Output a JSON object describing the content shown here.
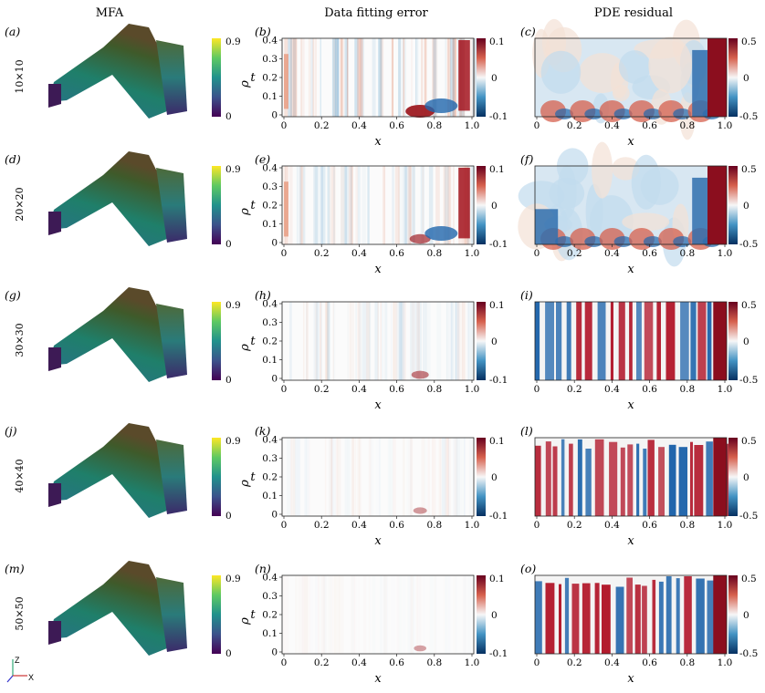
{
  "columns": {
    "col_titles": [
      "MFA",
      "Data fitting error",
      "PDE residual"
    ]
  },
  "rows": [
    {
      "label": "10×10",
      "panels": [
        "(a)",
        "(b)",
        "(c)"
      ]
    },
    {
      "label": "20×20",
      "panels": [
        "(d)",
        "(e)",
        "(f)"
      ]
    },
    {
      "label": "30×30",
      "panels": [
        "(g)",
        "(h)",
        "(i)"
      ]
    },
    {
      "label": "40×40",
      "panels": [
        "(j)",
        "(k)",
        "(l)"
      ]
    },
    {
      "label": "50×50",
      "panels": [
        "(m)",
        "(n)",
        "(o)"
      ]
    }
  ],
  "colorbars": {
    "mfa": {
      "symbol": "ρ",
      "ticks": [
        "0.9",
        "0"
      ],
      "colors": [
        "#fde725",
        "#5ec962",
        "#21918c",
        "#3b528b",
        "#440154"
      ]
    },
    "error": {
      "ticks": [
        "0.1",
        "0",
        "-0.1"
      ],
      "colors": [
        "#67001f",
        "#d6604d",
        "#f7f7f7",
        "#4393c3",
        "#053061"
      ]
    },
    "residual": {
      "ticks": [
        "0.5",
        "0",
        "-0.5"
      ],
      "colors": [
        "#67001f",
        "#d6604d",
        "#f7f7f7",
        "#4393c3",
        "#053061"
      ]
    }
  },
  "axes_labels": {
    "x": "x",
    "t": "t"
  },
  "triad": {
    "z": "Z",
    "x": "X"
  },
  "chart_data": [
    {
      "type": "heatmap",
      "title": "Data fitting error",
      "xlabel": "x",
      "ylabel": "t",
      "xlim": [
        0,
        1.0
      ],
      "ylim": [
        0,
        0.4
      ],
      "x_ticks": [
        "0",
        "0.2",
        "0.4",
        "0.6",
        "0.8",
        "1.0"
      ],
      "y_ticks": [
        "0.4",
        "0.3",
        "0.2",
        "0.1",
        "0"
      ],
      "colorbar_range": [
        -0.1,
        0.1
      ],
      "rows": [
        "10×10",
        "20×20",
        "30×30",
        "40×40",
        "50×50"
      ],
      "relative_intensity": [
        1.0,
        0.55,
        0.35,
        0.15,
        0.08
      ]
    },
    {
      "type": "heatmap",
      "title": "PDE residual",
      "xlabel": "x",
      "ylabel": "",
      "xlim": [
        0,
        1.0
      ],
      "ylim": [
        0,
        0.4
      ],
      "x_ticks": [
        "0",
        "0.2",
        "0.4",
        "0.6",
        "0.8",
        "1.0"
      ],
      "colorbar_range": [
        -0.5,
        0.5
      ],
      "rows": [
        "10×10",
        "20×20",
        "30×30",
        "40×40",
        "50×50"
      ],
      "relative_intensity": [
        0.7,
        0.6,
        1.0,
        1.0,
        1.0
      ]
    }
  ]
}
